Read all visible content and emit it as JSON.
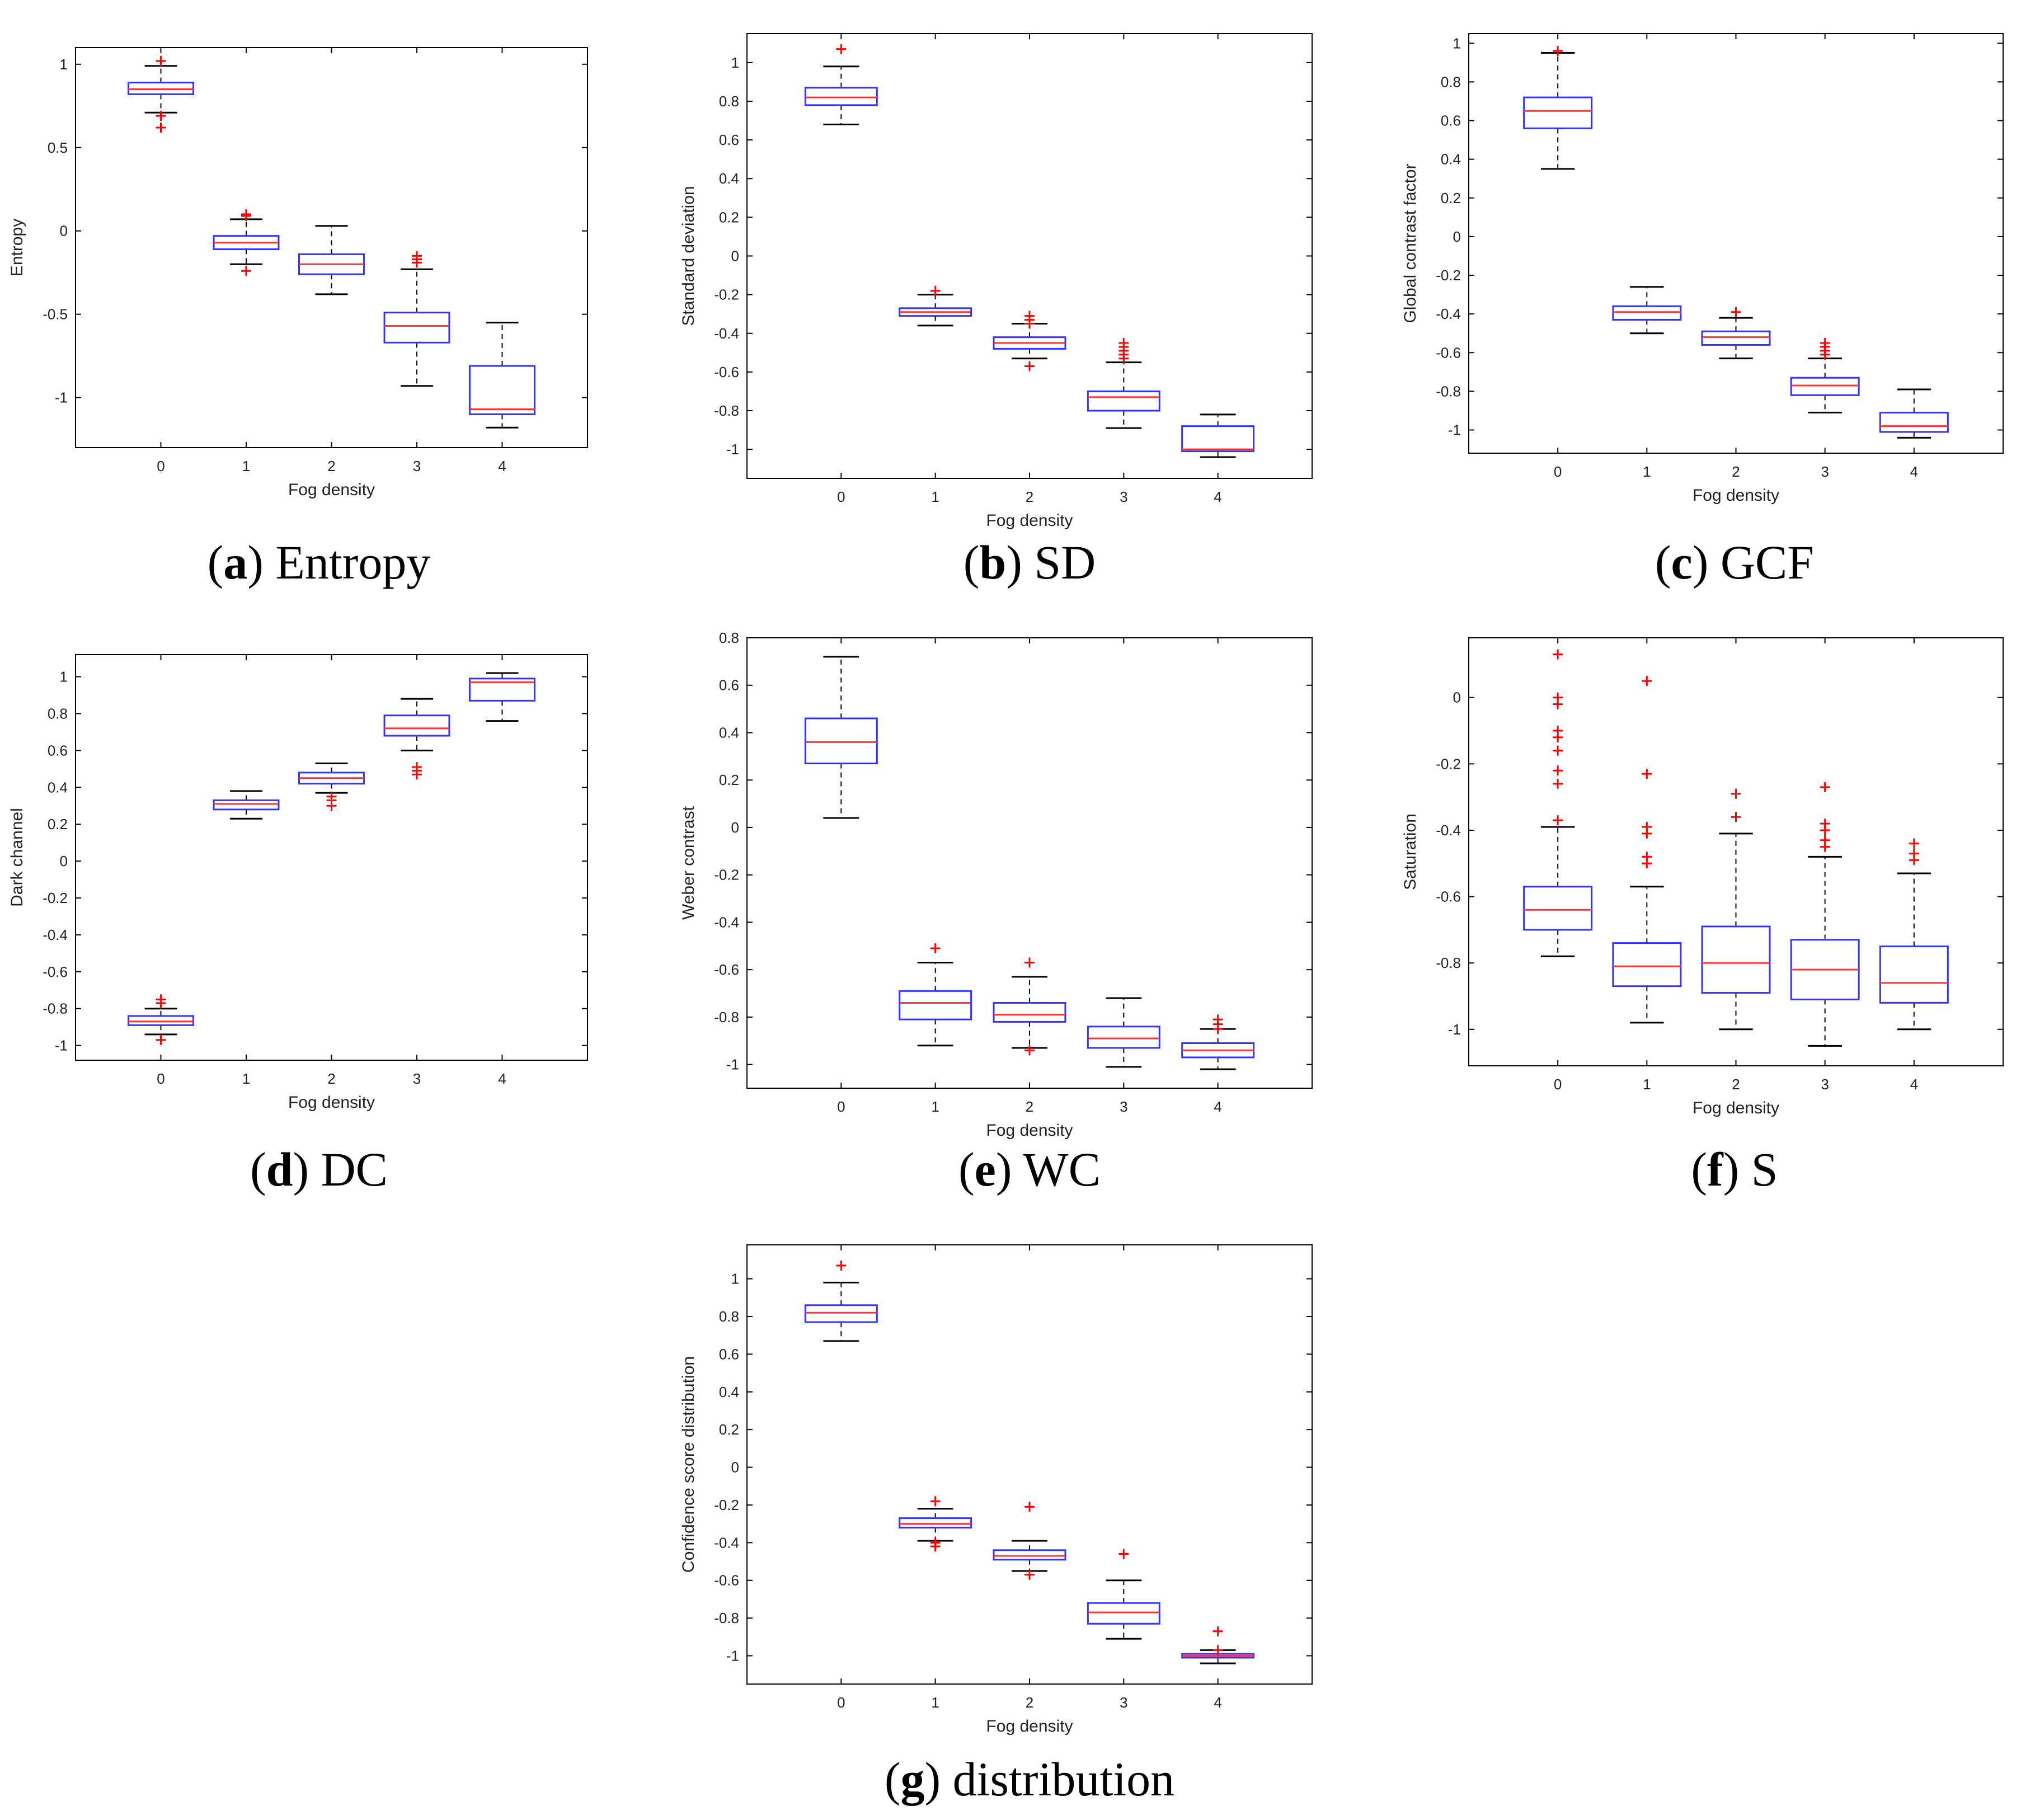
{
  "chart_data": [
    {
      "type": "boxplot",
      "id": "a",
      "caption_letter": "a",
      "caption_text": "Entropy",
      "xlabel": "Fog density",
      "ylabel": "Entropy",
      "categories": [
        "0",
        "1",
        "2",
        "3",
        "4"
      ],
      "ylim": [
        -1.3,
        1.1
      ],
      "yticks": [
        -1,
        -0.5,
        0,
        0.5,
        1
      ],
      "ytick_labels": [
        "-1",
        "-0.5",
        "0",
        "0.5",
        "1"
      ],
      "boxes": [
        {
          "whisker_low": 0.71,
          "q1": 0.82,
          "median": 0.85,
          "q3": 0.89,
          "whisker_high": 0.99,
          "outliers": [
            1.02,
            0.69,
            0.62
          ]
        },
        {
          "whisker_low": -0.2,
          "q1": -0.11,
          "median": -0.07,
          "q3": -0.03,
          "whisker_high": 0.07,
          "outliers": [
            0.09,
            0.1,
            -0.24
          ]
        },
        {
          "whisker_low": -0.38,
          "q1": -0.26,
          "median": -0.2,
          "q3": -0.14,
          "whisker_high": 0.03,
          "outliers": []
        },
        {
          "whisker_low": -0.93,
          "q1": -0.67,
          "median": -0.57,
          "q3": -0.49,
          "whisker_high": -0.23,
          "outliers": [
            -0.15,
            -0.17,
            -0.19
          ]
        },
        {
          "whisker_low": -1.18,
          "q1": -1.1,
          "median": -1.07,
          "q3": -0.81,
          "whisker_high": -0.55,
          "outliers": []
        }
      ]
    },
    {
      "type": "boxplot",
      "id": "b",
      "caption_letter": "b",
      "caption_text": "SD",
      "xlabel": "Fog density",
      "ylabel": "Standard deviation",
      "categories": [
        "0",
        "1",
        "2",
        "3",
        "4"
      ],
      "ylim": [
        -1.15,
        1.15
      ],
      "yticks": [
        -1,
        -0.8,
        -0.6,
        -0.4,
        -0.2,
        0,
        0.2,
        0.4,
        0.6,
        0.8,
        1
      ],
      "ytick_labels": [
        "-1",
        "-0.8",
        "-0.6",
        "-0.4",
        "-0.2",
        "0",
        "0.2",
        "0.4",
        "0.6",
        "0.8",
        "1"
      ],
      "boxes": [
        {
          "whisker_low": 0.68,
          "q1": 0.78,
          "median": 0.82,
          "q3": 0.87,
          "whisker_high": 0.98,
          "outliers": [
            1.07
          ]
        },
        {
          "whisker_low": -0.36,
          "q1": -0.31,
          "median": -0.29,
          "q3": -0.27,
          "whisker_high": -0.2,
          "outliers": [
            -0.18
          ]
        },
        {
          "whisker_low": -0.53,
          "q1": -0.48,
          "median": -0.45,
          "q3": -0.42,
          "whisker_high": -0.35,
          "outliers": [
            -0.31,
            -0.33,
            -0.35,
            -0.57
          ]
        },
        {
          "whisker_low": -0.89,
          "q1": -0.8,
          "median": -0.73,
          "q3": -0.7,
          "whisker_high": -0.55,
          "outliers": [
            -0.45,
            -0.47,
            -0.49,
            -0.51,
            -0.53
          ]
        },
        {
          "whisker_low": -1.04,
          "q1": -1.01,
          "median": -1.0,
          "q3": -0.88,
          "whisker_high": -0.82,
          "outliers": []
        }
      ]
    },
    {
      "type": "boxplot",
      "id": "c",
      "caption_letter": "c",
      "caption_text": "GCF",
      "xlabel": "Fog density",
      "ylabel": "Global contrast factor",
      "categories": [
        "0",
        "1",
        "2",
        "3",
        "4"
      ],
      "ylim": [
        -1.12,
        1.05
      ],
      "yticks": [
        -1,
        -0.8,
        -0.6,
        -0.4,
        -0.2,
        0,
        0.2,
        0.4,
        0.6,
        0.8,
        1
      ],
      "ytick_labels": [
        "-1",
        "-0.8",
        "-0.6",
        "-0.4",
        "-0.2",
        "0",
        "0.2",
        "0.4",
        "0.6",
        "0.8",
        "1"
      ],
      "boxes": [
        {
          "whisker_low": 0.35,
          "q1": 0.56,
          "median": 0.65,
          "q3": 0.72,
          "whisker_high": 0.95,
          "outliers": [
            0.96
          ]
        },
        {
          "whisker_low": -0.5,
          "q1": -0.43,
          "median": -0.39,
          "q3": -0.36,
          "whisker_high": -0.26,
          "outliers": []
        },
        {
          "whisker_low": -0.63,
          "q1": -0.56,
          "median": -0.52,
          "q3": -0.49,
          "whisker_high": -0.42,
          "outliers": [
            -0.39
          ]
        },
        {
          "whisker_low": -0.91,
          "q1": -0.82,
          "median": -0.77,
          "q3": -0.73,
          "whisker_high": -0.63,
          "outliers": [
            -0.55,
            -0.57,
            -0.59,
            -0.61
          ]
        },
        {
          "whisker_low": -1.04,
          "q1": -1.01,
          "median": -0.98,
          "q3": -0.91,
          "whisker_high": -0.79,
          "outliers": []
        }
      ]
    },
    {
      "type": "boxplot",
      "id": "d",
      "caption_letter": "d",
      "caption_text": "DC",
      "xlabel": "Fog density",
      "ylabel": "Dark channel",
      "categories": [
        "0",
        "1",
        "2",
        "3",
        "4"
      ],
      "ylim": [
        -1.08,
        1.12
      ],
      "yticks": [
        -1,
        -0.8,
        -0.6,
        -0.4,
        -0.2,
        0,
        0.2,
        0.4,
        0.6,
        0.8,
        1
      ],
      "ytick_labels": [
        "-1",
        "-0.8",
        "-0.6",
        "-0.4",
        "-0.2",
        "0",
        "0.2",
        "0.4",
        "0.6",
        "0.8",
        "1"
      ],
      "boxes": [
        {
          "whisker_low": -0.94,
          "q1": -0.89,
          "median": -0.87,
          "q3": -0.84,
          "whisker_high": -0.8,
          "outliers": [
            -0.75,
            -0.77,
            -0.97
          ]
        },
        {
          "whisker_low": 0.23,
          "q1": 0.28,
          "median": 0.31,
          "q3": 0.33,
          "whisker_high": 0.38,
          "outliers": []
        },
        {
          "whisker_low": 0.37,
          "q1": 0.42,
          "median": 0.45,
          "q3": 0.48,
          "whisker_high": 0.53,
          "outliers": [
            0.3,
            0.33,
            0.35
          ]
        },
        {
          "whisker_low": 0.6,
          "q1": 0.68,
          "median": 0.72,
          "q3": 0.79,
          "whisker_high": 0.88,
          "outliers": [
            0.47,
            0.49,
            0.51
          ]
        },
        {
          "whisker_low": 0.76,
          "q1": 0.87,
          "median": 0.97,
          "q3": 0.99,
          "whisker_high": 1.02,
          "outliers": []
        }
      ]
    },
    {
      "type": "boxplot",
      "id": "e",
      "caption_letter": "e",
      "caption_text": "WC",
      "xlabel": "Fog density",
      "ylabel": "Weber contrast",
      "categories": [
        "0",
        "1",
        "2",
        "3",
        "4"
      ],
      "ylim": [
        -1.1,
        0.8
      ],
      "yticks": [
        -1,
        -0.8,
        -0.6,
        -0.4,
        -0.2,
        0,
        0.2,
        0.4,
        0.6,
        0.8
      ],
      "ytick_labels": [
        "-1",
        "-0.8",
        "-0.6",
        "-0.4",
        "-0.2",
        "0",
        "0.2",
        "0.4",
        "0.6",
        "0.8"
      ],
      "boxes": [
        {
          "whisker_low": 0.04,
          "q1": 0.27,
          "median": 0.36,
          "q3": 0.46,
          "whisker_high": 0.72,
          "outliers": []
        },
        {
          "whisker_low": -0.92,
          "q1": -0.81,
          "median": -0.74,
          "q3": -0.69,
          "whisker_high": -0.57,
          "outliers": [
            -0.51
          ]
        },
        {
          "whisker_low": -0.93,
          "q1": -0.82,
          "median": -0.79,
          "q3": -0.74,
          "whisker_high": -0.63,
          "outliers": [
            -0.57,
            -0.94
          ]
        },
        {
          "whisker_low": -1.01,
          "q1": -0.93,
          "median": -0.89,
          "q3": -0.84,
          "whisker_high": -0.72,
          "outliers": []
        },
        {
          "whisker_low": -1.02,
          "q1": -0.97,
          "median": -0.94,
          "q3": -0.91,
          "whisker_high": -0.85,
          "outliers": [
            -0.81,
            -0.83,
            -0.85
          ]
        }
      ]
    },
    {
      "type": "boxplot",
      "id": "f",
      "caption_letter": "f",
      "caption_text": "S",
      "xlabel": "Fog density",
      "ylabel": "Saturation",
      "categories": [
        "0",
        "1",
        "2",
        "3",
        "4"
      ],
      "ylim": [
        -1.11,
        0.18
      ],
      "yticks": [
        -1,
        -0.8,
        -0.6,
        -0.4,
        -0.2,
        0
      ],
      "ytick_labels": [
        "-1",
        "-0.8",
        "-0.6",
        "-0.4",
        "-0.2",
        "0"
      ],
      "boxes": [
        {
          "whisker_low": -0.78,
          "q1": -0.7,
          "median": -0.64,
          "q3": -0.57,
          "whisker_high": -0.39,
          "outliers": [
            0.13,
            0.0,
            -0.02,
            -0.1,
            -0.12,
            -0.16,
            -0.22,
            -0.26,
            -0.37
          ]
        },
        {
          "whisker_low": -0.98,
          "q1": -0.87,
          "median": -0.81,
          "q3": -0.74,
          "whisker_high": -0.57,
          "outliers": [
            0.05,
            -0.23,
            -0.39,
            -0.41,
            -0.48,
            -0.5
          ]
        },
        {
          "whisker_low": -1.0,
          "q1": -0.89,
          "median": -0.8,
          "q3": -0.69,
          "whisker_high": -0.41,
          "outliers": [
            -0.29,
            -0.36
          ]
        },
        {
          "whisker_low": -1.05,
          "q1": -0.91,
          "median": -0.82,
          "q3": -0.73,
          "whisker_high": -0.48,
          "outliers": [
            -0.27,
            -0.38,
            -0.4,
            -0.43,
            -0.45
          ]
        },
        {
          "whisker_low": -1.0,
          "q1": -0.92,
          "median": -0.86,
          "q3": -0.75,
          "whisker_high": -0.53,
          "outliers": [
            -0.44,
            -0.47,
            -0.49
          ]
        }
      ]
    },
    {
      "type": "boxplot",
      "id": "g",
      "caption_letter": "g",
      "caption_text": "distribution",
      "xlabel": "Fog density",
      "ylabel": "Confidence score distribution",
      "categories": [
        "0",
        "1",
        "2",
        "3",
        "4"
      ],
      "ylim": [
        -1.15,
        1.18
      ],
      "yticks": [
        -1,
        -0.8,
        -0.6,
        -0.4,
        -0.2,
        0,
        0.2,
        0.4,
        0.6,
        0.8,
        1
      ],
      "ytick_labels": [
        "-1",
        "-0.8",
        "-0.6",
        "-0.4",
        "-0.2",
        "0",
        "0.2",
        "0.4",
        "0.6",
        "0.8",
        "1"
      ],
      "boxes": [
        {
          "whisker_low": 0.67,
          "q1": 0.77,
          "median": 0.82,
          "q3": 0.86,
          "whisker_high": 0.98,
          "outliers": [
            1.07
          ]
        },
        {
          "whisker_low": -0.39,
          "q1": -0.32,
          "median": -0.3,
          "q3": -0.27,
          "whisker_high": -0.22,
          "outliers": [
            -0.18,
            -0.4,
            -0.42
          ]
        },
        {
          "whisker_low": -0.55,
          "q1": -0.49,
          "median": -0.47,
          "q3": -0.44,
          "whisker_high": -0.39,
          "outliers": [
            -0.21,
            -0.57
          ]
        },
        {
          "whisker_low": -0.91,
          "q1": -0.83,
          "median": -0.77,
          "q3": -0.72,
          "whisker_high": -0.6,
          "outliers": [
            -0.46
          ]
        },
        {
          "whisker_low": -1.04,
          "q1": -1.01,
          "median": -1.0,
          "q3": -0.99,
          "whisker_high": -0.97,
          "outliers": [
            -0.87,
            -0.97
          ]
        }
      ]
    }
  ],
  "colors": {
    "box": "#3333ff",
    "median": "#ff3333",
    "whisker": "#000000",
    "outlier": "#ff0000",
    "axes": "#000000",
    "background": "#ffffff"
  }
}
